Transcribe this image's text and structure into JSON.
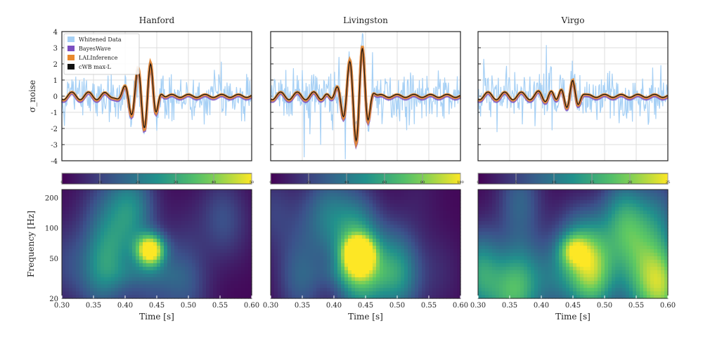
{
  "chart_data": [
    {
      "type": "line",
      "title": "Hanford",
      "ylabel": "σ_noise",
      "ylim": [
        -4,
        4
      ],
      "yticks": [
        -4,
        -3,
        -2,
        -1,
        0,
        1,
        2,
        3,
        4
      ],
      "xlim": [
        0.3,
        0.6
      ],
      "legend": {
        "placement": "top-left",
        "entries": [
          "Whitened Data",
          "BayesWave",
          "LALInference",
          "cWB max-L"
        ]
      },
      "waveform": {
        "peak_time": 0.44,
        "peak_amplitude": 2.1,
        "frequency_hz": 50,
        "noise_sigma": 1.0,
        "seed": 3
      }
    },
    {
      "type": "line",
      "title": "Livingston",
      "ylim": [
        -4,
        4
      ],
      "xlim": [
        0.3,
        0.6
      ],
      "waveform": {
        "peak_time": 0.445,
        "peak_amplitude": 2.9,
        "frequency_hz": 50,
        "noise_sigma": 1.0,
        "seed": 7
      }
    },
    {
      "type": "line",
      "title": "Virgo",
      "ylim": [
        -4,
        4
      ],
      "xlim": [
        0.3,
        0.6
      ],
      "waveform": {
        "peak_time": 0.45,
        "peak_amplitude": 0.8,
        "frequency_hz": 55,
        "noise_sigma": 1.1,
        "seed": 11
      }
    },
    {
      "type": "heatmap",
      "xlabel": "Time [s]",
      "ylabel": "Frequency [Hz]",
      "xticks": [
        "0.30",
        "0.35",
        "0.40",
        "0.45",
        "0.50",
        "0.55",
        "0.60"
      ],
      "yticks": [
        "20",
        "50",
        "100",
        "200"
      ],
      "colorbar": {
        "ticks": [
          "0",
          "10",
          "20",
          "30",
          "40",
          "50"
        ],
        "max": 50
      },
      "blob": {
        "time": 0.44,
        "freq": 60,
        "value": 50
      },
      "seed": 5
    },
    {
      "type": "heatmap",
      "xlabel": "Time [s]",
      "xticks": [
        "0.30",
        "0.35",
        "0.40",
        "0.45",
        "0.50",
        "0.55",
        "0.60"
      ],
      "colorbar": {
        "ticks": [
          "0",
          "20",
          "40",
          "60",
          "80",
          "100"
        ],
        "max": 100
      },
      "blob": {
        "time": 0.44,
        "freq": 55,
        "value": 100
      },
      "seed": 9
    },
    {
      "type": "heatmap",
      "xlabel": "Time [s]",
      "xticks": [
        "0.30",
        "0.35",
        "0.40",
        "0.45",
        "0.50",
        "0.55",
        "0.60"
      ],
      "colorbar": {
        "ticks": [
          "0",
          "5",
          "10",
          "15",
          "20",
          "25"
        ],
        "max": 25
      },
      "blob": {
        "time": 0.45,
        "freq": 60,
        "value": 10
      },
      "seed": 13
    }
  ],
  "colors": {
    "data": "#a6d0f5",
    "bayeswave": "#7b4fc0",
    "lal": "#e8892d",
    "cwb": "#111111"
  }
}
